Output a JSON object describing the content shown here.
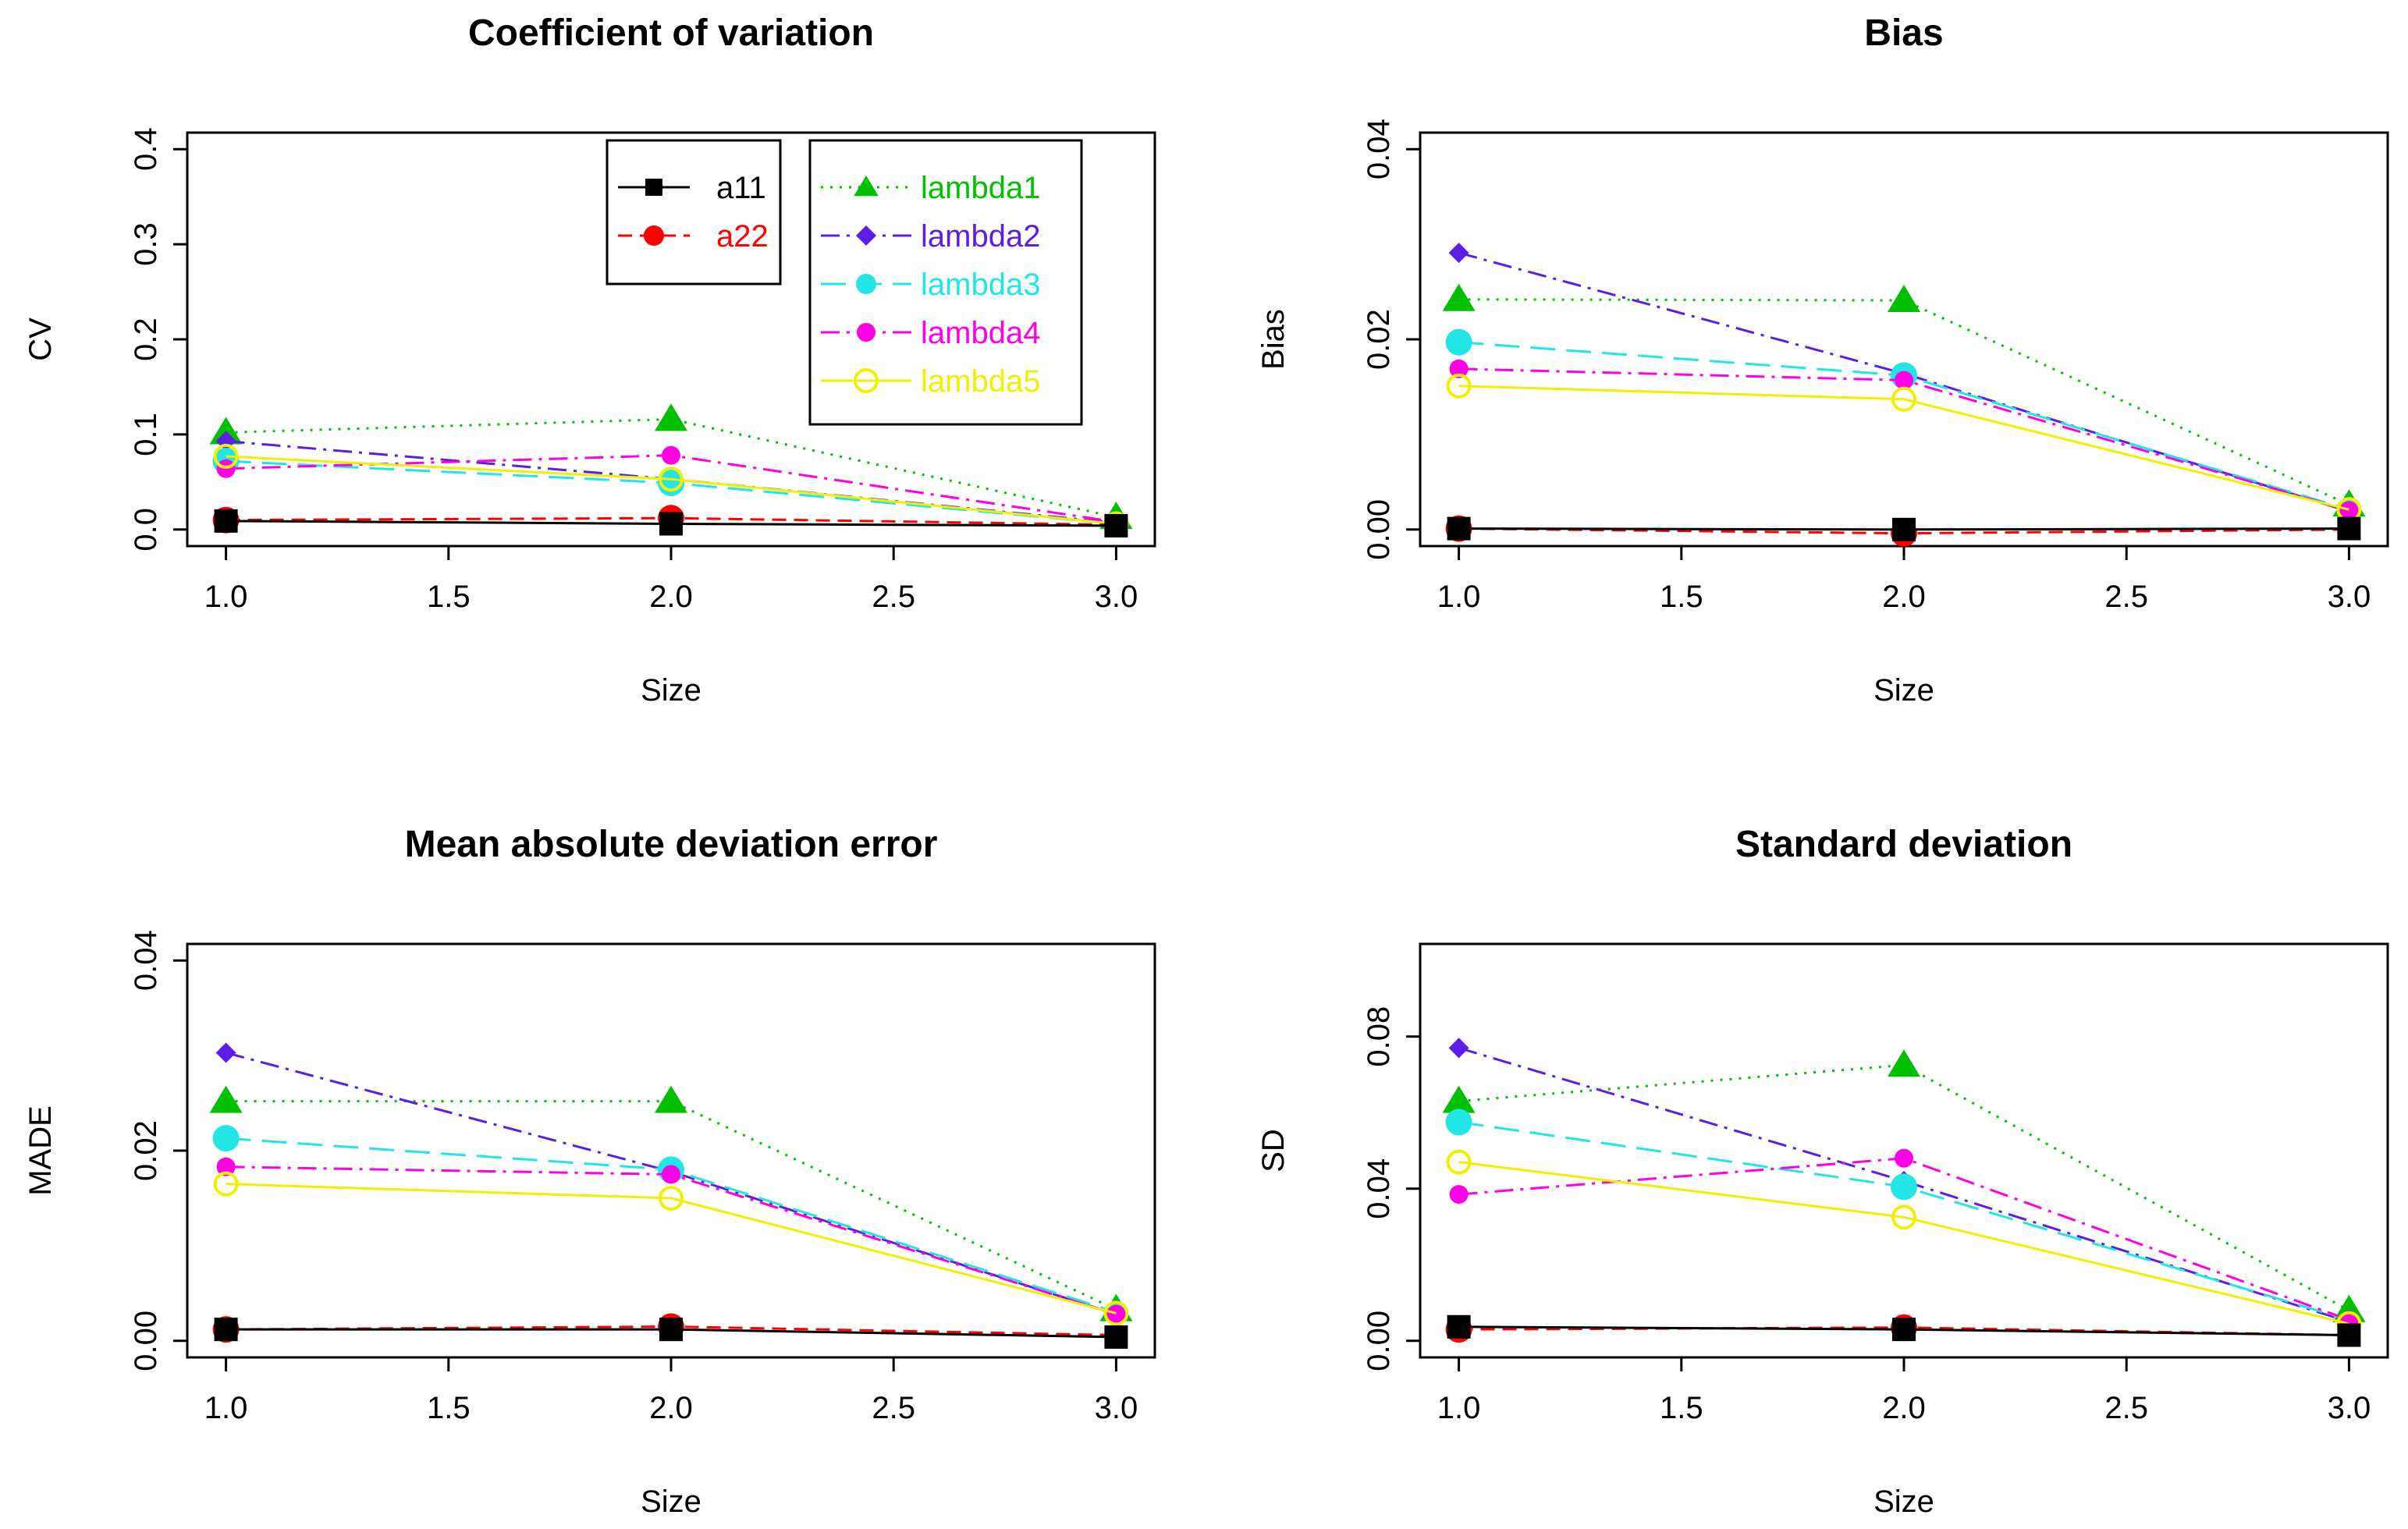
{
  "series_styles": {
    "a11": {
      "color": "#000000",
      "dash": "",
      "marker": "square"
    },
    "a22": {
      "color": "#ff0000",
      "dash": "18,10",
      "marker": "circle"
    },
    "lambda1": {
      "color": "#00c000",
      "dash": "3,9",
      "marker": "triangle"
    },
    "lambda2": {
      "color": "#5a1ee6",
      "dash": "24,9,4,9",
      "marker": "diamond"
    },
    "lambda3": {
      "color": "#22e6e6",
      "dash": "32,14",
      "marker": "circle"
    },
    "lambda4": {
      "color": "#ff00e6",
      "dash": "24,9,4,9",
      "marker": "circle"
    },
    "lambda5": {
      "color": "#f0f000",
      "dash": "",
      "marker": "open-circle"
    }
  },
  "legend": {
    "left": [
      {
        "key": "a11",
        "label": "a11"
      },
      {
        "key": "a22",
        "label": "a22"
      }
    ],
    "right": [
      {
        "key": "lambda1",
        "label": "lambda1"
      },
      {
        "key": "lambda2",
        "label": "lambda2"
      },
      {
        "key": "lambda3",
        "label": "lambda3"
      },
      {
        "key": "lambda4",
        "label": "lambda4"
      },
      {
        "key": "lambda5",
        "label": "lambda5"
      }
    ]
  },
  "chart_data": [
    {
      "type": "line",
      "title": "Coefficient of variation",
      "xlabel": "Size",
      "ylabel": "CV",
      "xlim": [
        1.0,
        3.0
      ],
      "ylim": [
        0.0,
        0.4
      ],
      "xticks": [
        "1.0",
        "1.5",
        "2.0",
        "2.5",
        "3.0"
      ],
      "yticks": [
        "0.0",
        "0.1",
        "0.2",
        "0.3",
        "0.4"
      ],
      "x": [
        1.0,
        2.0,
        3.0
      ],
      "series": [
        {
          "name": "a11",
          "values": [
            0.009,
            0.006,
            0.004
          ]
        },
        {
          "name": "a22",
          "values": [
            0.01,
            0.012,
            0.005
          ]
        },
        {
          "name": "lambda1",
          "values": [
            0.102,
            0.116,
            0.013
          ]
        },
        {
          "name": "lambda2",
          "values": [
            0.093,
            0.053,
            0.007
          ]
        },
        {
          "name": "lambda3",
          "values": [
            0.072,
            0.049,
            0.006
          ]
        },
        {
          "name": "lambda4",
          "values": [
            0.064,
            0.078,
            0.008
          ]
        },
        {
          "name": "lambda5",
          "values": [
            0.077,
            0.053,
            0.006
          ]
        }
      ]
    },
    {
      "type": "line",
      "title": "Bias",
      "xlabel": "Size",
      "ylabel": "Bias",
      "xlim": [
        1.0,
        3.0
      ],
      "ylim": [
        0.0,
        0.04
      ],
      "xticks": [
        "1.0",
        "1.5",
        "2.0",
        "2.5",
        "3.0"
      ],
      "yticks": [
        "0.00",
        "0.02",
        "0.04"
      ],
      "x": [
        1.0,
        2.0,
        3.0
      ],
      "series": [
        {
          "name": "a11",
          "values": [
            0.0001,
            0.0,
            0.0001
          ]
        },
        {
          "name": "a22",
          "values": [
            0.0001,
            -0.0004,
            0.0
          ]
        },
        {
          "name": "lambda1",
          "values": [
            0.0242,
            0.0241,
            0.0026
          ]
        },
        {
          "name": "lambda2",
          "values": [
            0.0291,
            0.0164,
            0.0019
          ]
        },
        {
          "name": "lambda3",
          "values": [
            0.0197,
            0.0162,
            0.0021
          ]
        },
        {
          "name": "lambda4",
          "values": [
            0.0169,
            0.0157,
            0.002
          ]
        },
        {
          "name": "lambda5",
          "values": [
            0.0151,
            0.0137,
            0.0021
          ]
        }
      ]
    },
    {
      "type": "line",
      "title": "Mean absolute deviation error",
      "xlabel": "Size",
      "ylabel": "MADE",
      "xlim": [
        1.0,
        3.0
      ],
      "ylim": [
        0.0,
        0.04
      ],
      "xticks": [
        "1.0",
        "1.5",
        "2.0",
        "2.5",
        "3.0"
      ],
      "yticks": [
        "0.00",
        "0.02",
        "0.04"
      ],
      "x": [
        1.0,
        2.0,
        3.0
      ],
      "series": [
        {
          "name": "a11",
          "values": [
            0.0012,
            0.0012,
            0.0004
          ]
        },
        {
          "name": "a22",
          "values": [
            0.0012,
            0.0015,
            0.0006
          ]
        },
        {
          "name": "lambda1",
          "values": [
            0.0252,
            0.0252,
            0.0033
          ]
        },
        {
          "name": "lambda2",
          "values": [
            0.0303,
            0.0178,
            0.0028
          ]
        },
        {
          "name": "lambda3",
          "values": [
            0.0213,
            0.018,
            0.003
          ]
        },
        {
          "name": "lambda4",
          "values": [
            0.0183,
            0.0175,
            0.0028
          ]
        },
        {
          "name": "lambda5",
          "values": [
            0.0165,
            0.015,
            0.0029
          ]
        }
      ]
    },
    {
      "type": "line",
      "title": "Standard deviation",
      "xlabel": "Size",
      "ylabel": "SD",
      "xlim": [
        1.0,
        3.0
      ],
      "ylim": [
        0.0,
        0.1
      ],
      "xticks": [
        "1.0",
        "1.5",
        "2.0",
        "2.5",
        "3.0"
      ],
      "yticks": [
        "0.00",
        "0.04",
        "0.08"
      ],
      "x": [
        1.0,
        2.0,
        3.0
      ],
      "series": [
        {
          "name": "a11",
          "values": [
            0.0037,
            0.003,
            0.0015
          ]
        },
        {
          "name": "a22",
          "values": [
            0.003,
            0.0035,
            0.0015
          ]
        },
        {
          "name": "lambda1",
          "values": [
            0.063,
            0.0725,
            0.008
          ]
        },
        {
          "name": "lambda2",
          "values": [
            0.077,
            0.042,
            0.005
          ]
        },
        {
          "name": "lambda3",
          "values": [
            0.0575,
            0.0405,
            0.0055
          ]
        },
        {
          "name": "lambda4",
          "values": [
            0.0385,
            0.048,
            0.0055
          ]
        },
        {
          "name": "lambda5",
          "values": [
            0.047,
            0.0325,
            0.0045
          ]
        }
      ]
    }
  ]
}
